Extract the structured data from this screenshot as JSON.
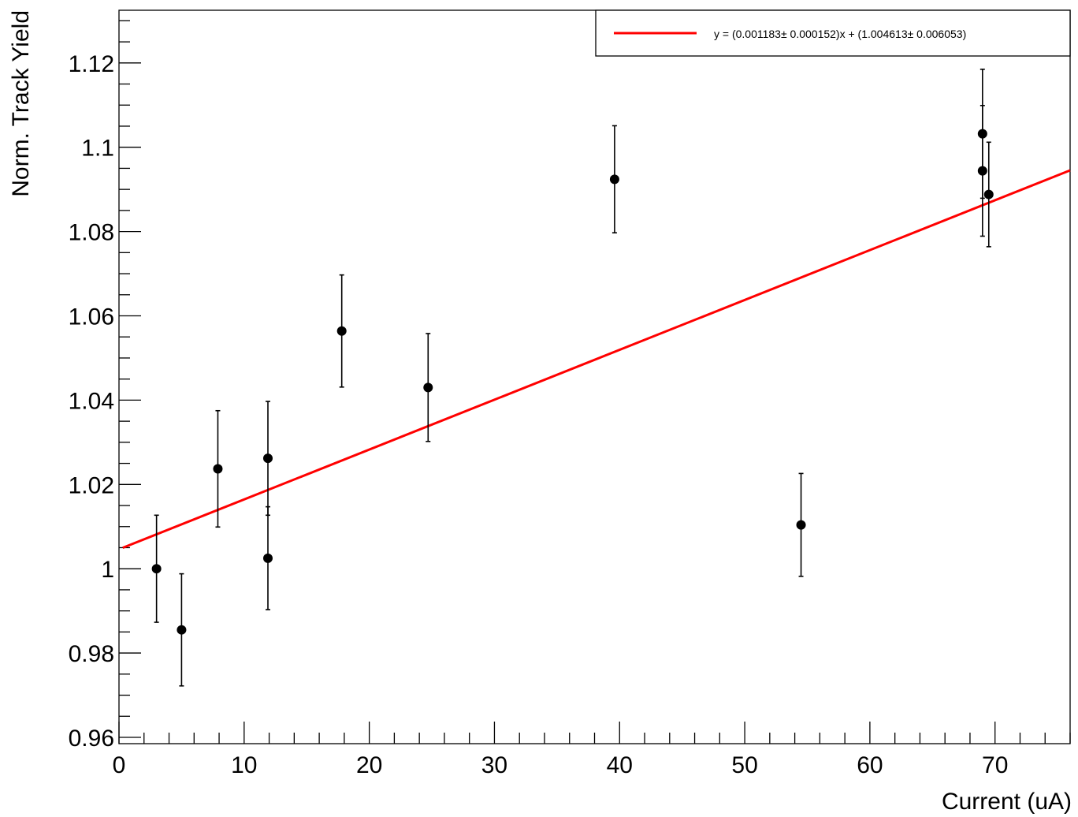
{
  "chart_data": {
    "type": "scatter",
    "xlabel": "Current (uA)",
    "ylabel": "Norm. Track Yield",
    "xlim": [
      0,
      76
    ],
    "ylim": [
      0.9585,
      1.1325
    ],
    "x_ticks": [
      0,
      10,
      20,
      30,
      40,
      50,
      60,
      70
    ],
    "x_tick_labels": [
      "0",
      "10",
      "20",
      "30",
      "40",
      "50",
      "60",
      "70"
    ],
    "y_ticks": [
      0.96,
      0.98,
      1.0,
      1.02,
      1.04,
      1.06,
      1.08,
      1.1,
      1.12
    ],
    "y_tick_labels": [
      "0.96",
      "0.98",
      "1",
      "1.02",
      "1.04",
      "1.06",
      "1.08",
      "1.1",
      "1.12"
    ],
    "grid": false,
    "legend_position": "top-right",
    "legend_text": "y = (0.001183± 0.000152)x + (1.004613± 0.006053)",
    "series": [
      {
        "points": [
          {
            "x": 3.0,
            "y": 1.0,
            "err": 0.0127
          },
          {
            "x": 5.0,
            "y": 0.9855,
            "err": 0.0133
          },
          {
            "x": 7.9,
            "y": 1.0237,
            "err": 0.0138
          },
          {
            "x": 11.9,
            "y": 1.0262,
            "err": 0.0135
          },
          {
            "x": 11.9,
            "y": 1.0025,
            "err": 0.0122
          },
          {
            "x": 17.8,
            "y": 1.0564,
            "err": 0.0133
          },
          {
            "x": 24.7,
            "y": 1.043,
            "err": 0.0128
          },
          {
            "x": 39.6,
            "y": 1.0924,
            "err": 0.0127
          },
          {
            "x": 54.5,
            "y": 1.0104,
            "err": 0.0122
          },
          {
            "x": 69.0,
            "y": 1.1032,
            "err": 0.0153
          },
          {
            "x": 69.0,
            "y": 1.0944,
            "err": 0.0155
          },
          {
            "x": 69.5,
            "y": 1.0888,
            "err": 0.0124
          }
        ],
        "color": "#000000"
      }
    ],
    "fit": {
      "slope": 0.001183,
      "slope_err": 0.000152,
      "intercept": 1.004613,
      "intercept_err": 0.006053,
      "x_range": [
        0.3,
        76
      ],
      "color": "#ff0000"
    }
  }
}
